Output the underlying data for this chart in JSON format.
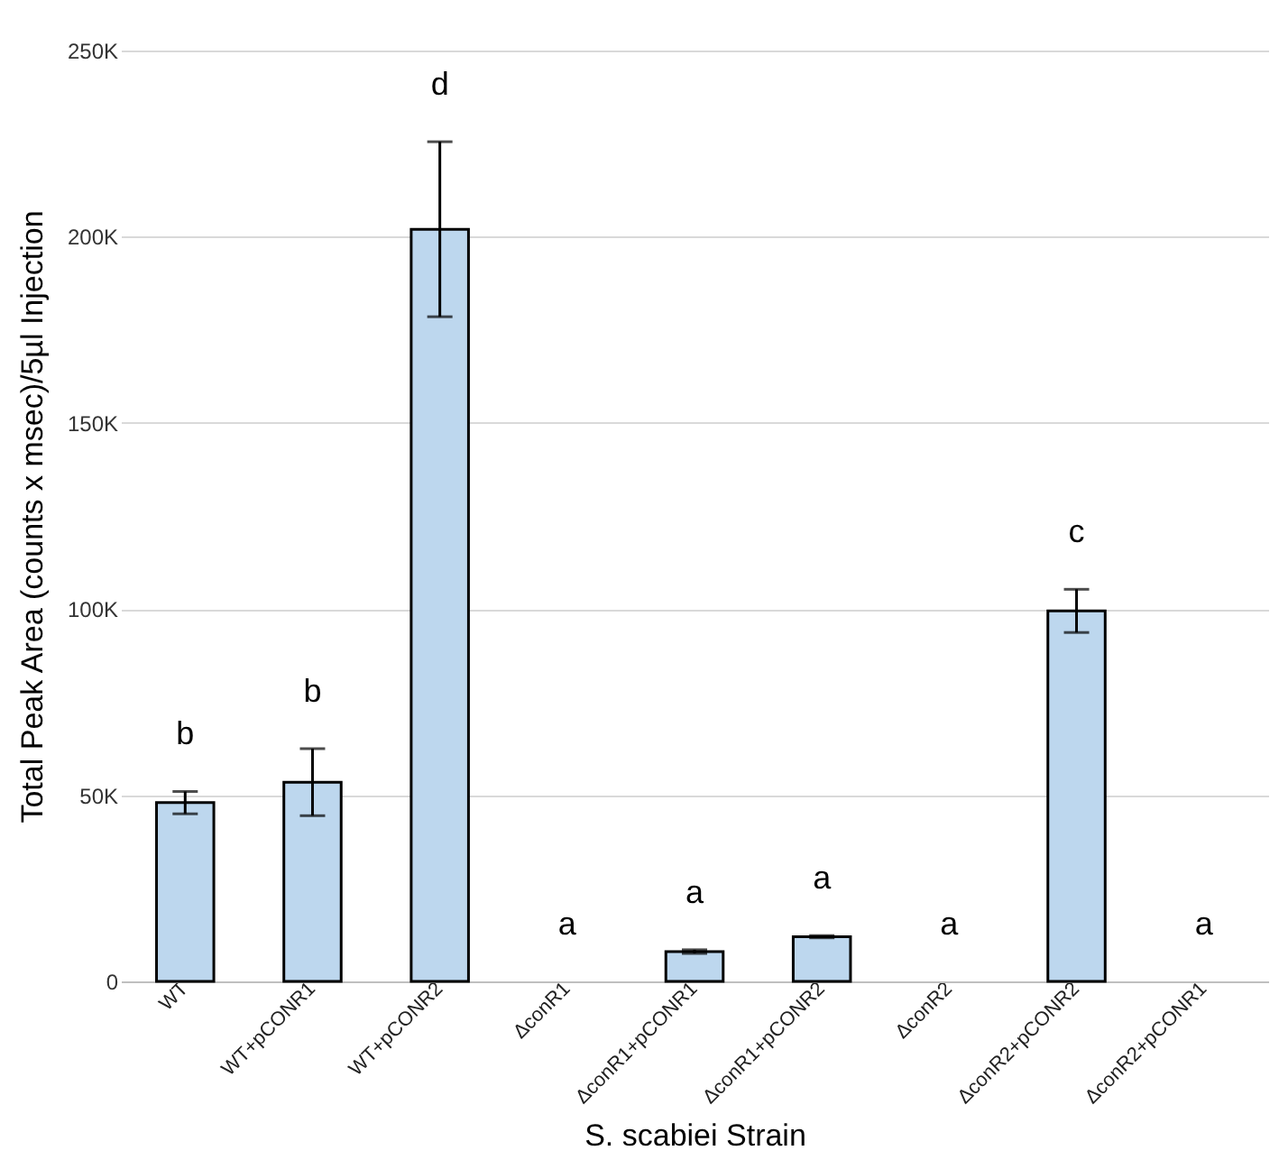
{
  "chart_data": {
    "type": "bar",
    "xlabel": "S. scabiei Strain",
    "ylabel": "Total Peak Area (counts x msec)/5µl Injection",
    "categories": [
      "WT",
      "WT+pCONR1",
      "WT+pCONR2",
      "ΔconR1",
      "ΔconR1+pCONR1",
      "ΔconR1+pCONR2",
      "ΔconR2",
      "ΔconR2+pCONR2",
      "ΔconR2+pCONR1"
    ],
    "values": [
      48000,
      53500,
      202000,
      0,
      8000,
      12000,
      0,
      99500,
      0
    ],
    "errors": [
      3000,
      9000,
      23500,
      null,
      500,
      300,
      null,
      5800,
      null
    ],
    "color": "#bdd7ee",
    "ylim": [
      0,
      250000
    ],
    "yticks": [
      {
        "value": 0,
        "label": "0"
      },
      {
        "value": 50000,
        "label": "50K"
      },
      {
        "value": 100000,
        "label": "100K"
      },
      {
        "value": 150000,
        "label": "150K"
      },
      {
        "value": 200000,
        "label": "200K"
      },
      {
        "value": 250000,
        "label": "250K"
      }
    ],
    "grid": "y",
    "annotations": [
      "b",
      "b",
      "d",
      "a",
      "a",
      "a",
      "a",
      "c",
      "a"
    ]
  }
}
